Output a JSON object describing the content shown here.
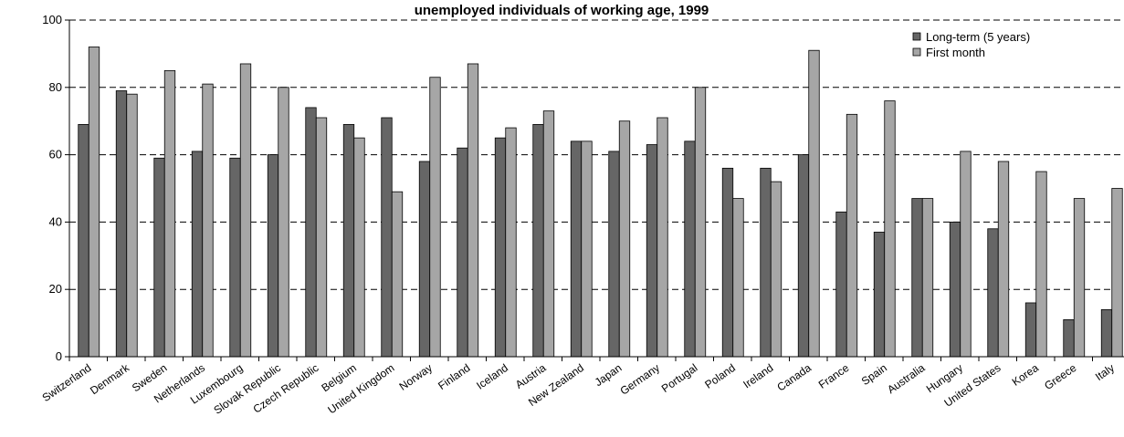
{
  "chart_data": {
    "type": "bar",
    "title": "unemployed individuals of working age, 1999",
    "xlabel": "",
    "ylabel": "",
    "ylim": [
      0,
      100
    ],
    "yticks": [
      0,
      20,
      40,
      60,
      80,
      100
    ],
    "grid": true,
    "legend_position": "top-right",
    "categories": [
      "Switzerland",
      "Denmark",
      "Sweden",
      "Netherlands",
      "Luxembourg",
      "Slovak Republic",
      "Czech Republic",
      "Belgium",
      "United Kingdom",
      "Norway",
      "Finland",
      "Iceland",
      "Austria",
      "New Zealand",
      "Japan",
      "Germany",
      "Portugal",
      "Poland",
      "Ireland",
      "Canada",
      "France",
      "Spain",
      "Australia",
      "Hungary",
      "United States",
      "Korea",
      "Greece",
      "Italy"
    ],
    "series": [
      {
        "name": "Long-term (5 years)",
        "color": "#666666",
        "values": [
          69,
          79,
          59,
          61,
          59,
          60,
          74,
          69,
          71,
          58,
          62,
          65,
          69,
          64,
          61,
          63,
          64,
          56,
          56,
          60,
          43,
          37,
          47,
          40,
          38,
          16,
          11,
          14
        ]
      },
      {
        "name": "First month",
        "color": "#a6a6a6",
        "values": [
          92,
          78,
          85,
          81,
          87,
          80,
          71,
          65,
          49,
          83,
          87,
          68,
          73,
          64,
          70,
          71,
          80,
          47,
          52,
          91,
          72,
          76,
          47,
          61,
          58,
          55,
          47,
          50
        ]
      }
    ]
  }
}
